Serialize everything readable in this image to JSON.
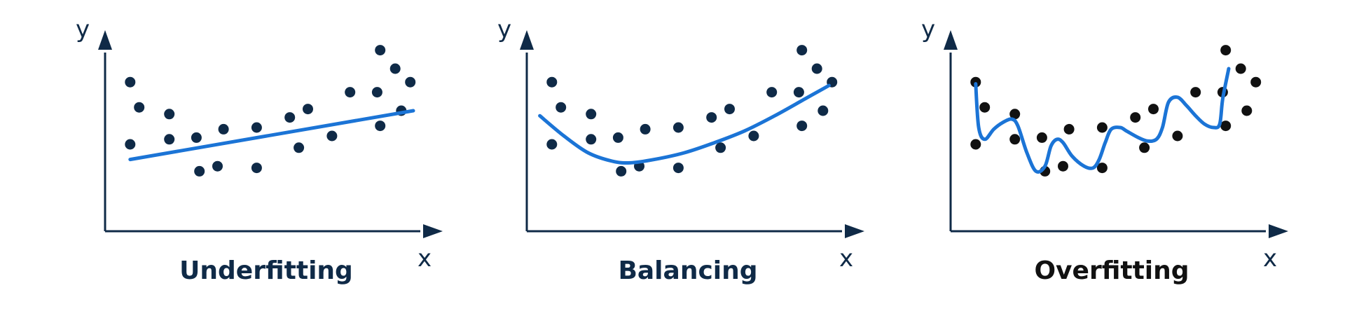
{
  "colors": {
    "axis": "#0f2a47",
    "dark_points": "#0f2a47",
    "black_points": "#111111",
    "fit_line": "#1b74d6",
    "title_dark_blue": "#0f2a47",
    "title_black": "#111111"
  },
  "panels": [
    {
      "title": "Underfitting",
      "x_label": "x",
      "y_label": "y",
      "fit": "straight-line",
      "point_color": "dark_points",
      "title_color": "title_dark_blue",
      "points": [
        [
          0.06,
          0.72
        ],
        [
          0.09,
          0.57
        ],
        [
          0.06,
          0.35
        ],
        [
          0.19,
          0.53
        ],
        [
          0.19,
          0.38
        ],
        [
          0.28,
          0.39
        ],
        [
          0.29,
          0.19
        ],
        [
          0.35,
          0.22
        ],
        [
          0.37,
          0.44
        ],
        [
          0.48,
          0.45
        ],
        [
          0.48,
          0.21
        ],
        [
          0.59,
          0.51
        ],
        [
          0.62,
          0.33
        ],
        [
          0.65,
          0.56
        ],
        [
          0.73,
          0.4
        ],
        [
          0.79,
          0.66
        ],
        [
          0.88,
          0.66
        ],
        [
          0.89,
          0.46
        ],
        [
          0.89,
          0.91
        ],
        [
          0.94,
          0.8
        ],
        [
          0.96,
          0.55
        ],
        [
          0.99,
          0.72
        ]
      ],
      "curve": [
        [
          0.06,
          0.26
        ],
        [
          1.0,
          0.55
        ]
      ]
    },
    {
      "title": "Balancing",
      "x_label": "x",
      "y_label": "y",
      "fit": "smooth-curve",
      "point_color": "dark_points",
      "title_color": "title_dark_blue",
      "points": [
        [
          0.06,
          0.72
        ],
        [
          0.09,
          0.57
        ],
        [
          0.06,
          0.35
        ],
        [
          0.19,
          0.53
        ],
        [
          0.19,
          0.38
        ],
        [
          0.28,
          0.39
        ],
        [
          0.29,
          0.19
        ],
        [
          0.35,
          0.22
        ],
        [
          0.37,
          0.44
        ],
        [
          0.48,
          0.45
        ],
        [
          0.48,
          0.21
        ],
        [
          0.59,
          0.51
        ],
        [
          0.62,
          0.33
        ],
        [
          0.65,
          0.56
        ],
        [
          0.73,
          0.4
        ],
        [
          0.79,
          0.66
        ],
        [
          0.88,
          0.66
        ],
        [
          0.89,
          0.46
        ],
        [
          0.89,
          0.91
        ],
        [
          0.94,
          0.8
        ],
        [
          0.96,
          0.55
        ],
        [
          0.99,
          0.72
        ]
      ],
      "curve": [
        [
          0.02,
          0.52
        ],
        [
          0.1,
          0.4
        ],
        [
          0.18,
          0.3
        ],
        [
          0.26,
          0.25
        ],
        [
          0.32,
          0.24
        ],
        [
          0.4,
          0.26
        ],
        [
          0.5,
          0.3
        ],
        [
          0.6,
          0.36
        ],
        [
          0.7,
          0.43
        ],
        [
          0.8,
          0.52
        ],
        [
          0.9,
          0.62
        ],
        [
          0.98,
          0.7
        ]
      ]
    },
    {
      "title": "Overfitting",
      "x_label": "x",
      "y_label": "y",
      "fit": "wiggly-curve",
      "point_color": "black_points",
      "title_color": "title_black",
      "points": [
        [
          0.06,
          0.72
        ],
        [
          0.09,
          0.57
        ],
        [
          0.06,
          0.35
        ],
        [
          0.19,
          0.53
        ],
        [
          0.19,
          0.38
        ],
        [
          0.28,
          0.39
        ],
        [
          0.29,
          0.19
        ],
        [
          0.35,
          0.22
        ],
        [
          0.37,
          0.44
        ],
        [
          0.48,
          0.45
        ],
        [
          0.48,
          0.21
        ],
        [
          0.59,
          0.51
        ],
        [
          0.62,
          0.33
        ],
        [
          0.65,
          0.56
        ],
        [
          0.73,
          0.4
        ],
        [
          0.79,
          0.66
        ],
        [
          0.88,
          0.66
        ],
        [
          0.89,
          0.46
        ],
        [
          0.89,
          0.91
        ],
        [
          0.94,
          0.8
        ],
        [
          0.96,
          0.55
        ],
        [
          0.99,
          0.72
        ]
      ],
      "curve": [
        [
          0.06,
          0.71
        ],
        [
          0.07,
          0.45
        ],
        [
          0.09,
          0.38
        ],
        [
          0.12,
          0.44
        ],
        [
          0.15,
          0.48
        ],
        [
          0.18,
          0.5
        ],
        [
          0.2,
          0.46
        ],
        [
          0.23,
          0.3
        ],
        [
          0.26,
          0.19
        ],
        [
          0.29,
          0.22
        ],
        [
          0.31,
          0.34
        ],
        [
          0.33,
          0.38
        ],
        [
          0.35,
          0.36
        ],
        [
          0.38,
          0.28
        ],
        [
          0.42,
          0.22
        ],
        [
          0.45,
          0.21
        ],
        [
          0.47,
          0.26
        ],
        [
          0.49,
          0.36
        ],
        [
          0.51,
          0.44
        ],
        [
          0.54,
          0.45
        ],
        [
          0.56,
          0.43
        ],
        [
          0.6,
          0.39
        ],
        [
          0.63,
          0.37
        ],
        [
          0.66,
          0.38
        ],
        [
          0.68,
          0.45
        ],
        [
          0.7,
          0.6
        ],
        [
          0.73,
          0.63
        ],
        [
          0.76,
          0.58
        ],
        [
          0.79,
          0.52
        ],
        [
          0.82,
          0.47
        ],
        [
          0.85,
          0.45
        ],
        [
          0.87,
          0.47
        ],
        [
          0.88,
          0.62
        ],
        [
          0.9,
          0.8
        ]
      ]
    }
  ]
}
